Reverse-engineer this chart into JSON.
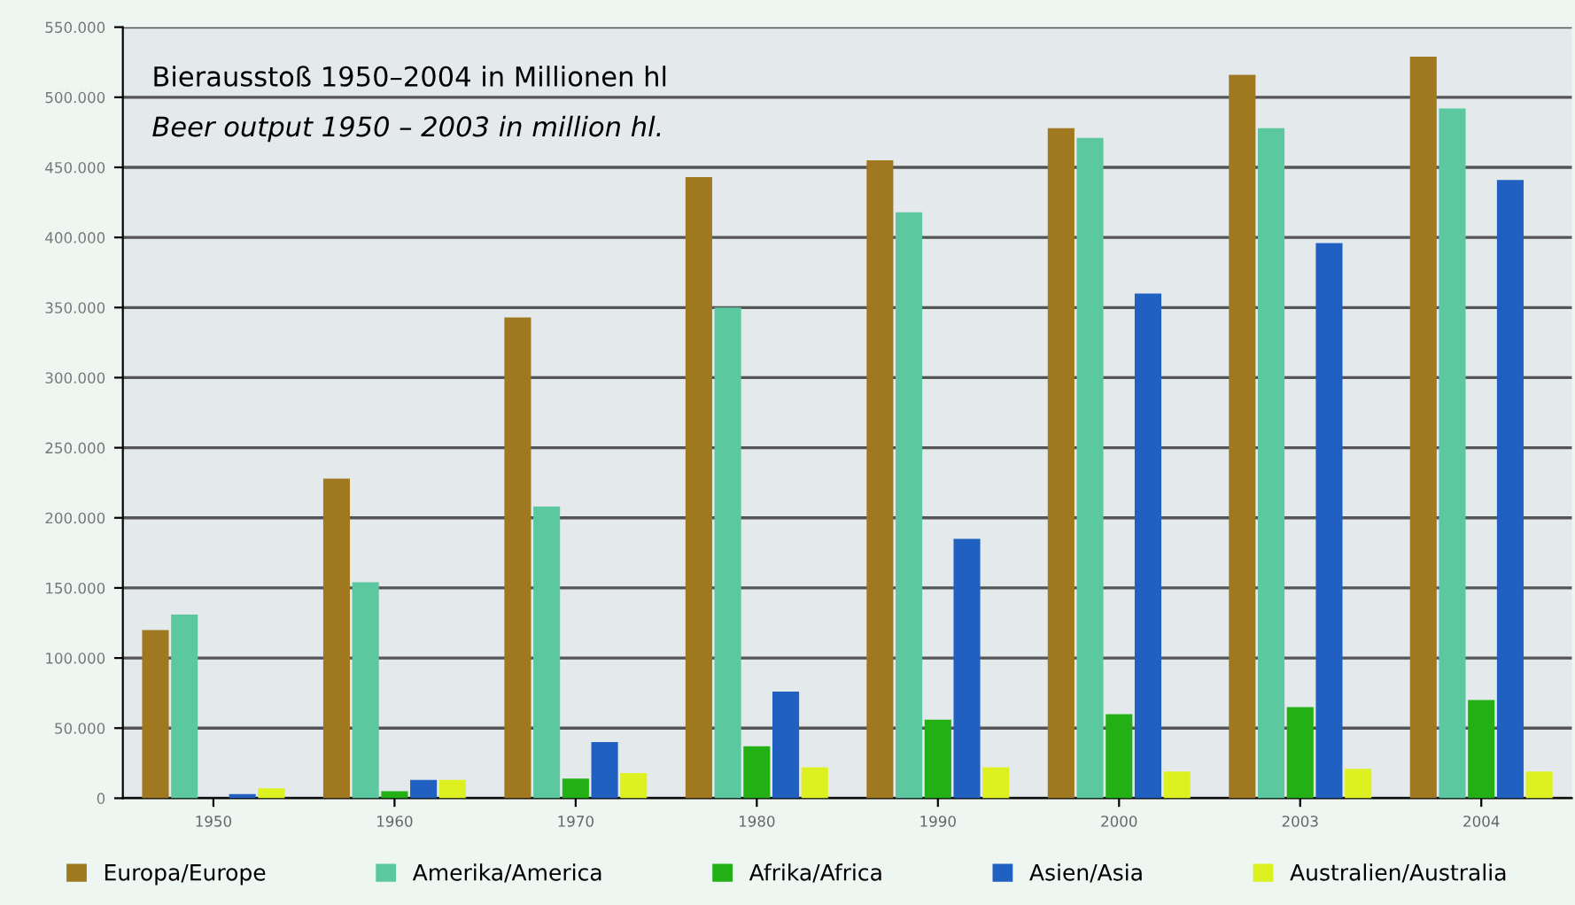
{
  "chart_data": {
    "type": "bar",
    "title": "Bierausstoß 1950–2004 in Millionen hl",
    "subtitle": "Beer output 1950 – 2003 in million hl.",
    "categories": [
      "1950",
      "1960",
      "1970",
      "1980",
      "1990",
      "2000",
      "2003",
      "2004"
    ],
    "series": [
      {
        "name": "Europa/Europe",
        "color": "#a07820",
        "values": [
          120000,
          228000,
          343000,
          443000,
          455000,
          478000,
          516000,
          529000
        ]
      },
      {
        "name": "Amerika/America",
        "color": "#5cc8a0",
        "values": [
          131000,
          154000,
          208000,
          350000,
          418000,
          471000,
          478000,
          492000
        ]
      },
      {
        "name": "Afrika/Africa",
        "color": "#22b014",
        "values": [
          null,
          5000,
          14000,
          37000,
          56000,
          60000,
          65000,
          70000
        ]
      },
      {
        "name": "Asien/Asia",
        "color": "#2060c0",
        "values": [
          3000,
          13000,
          40000,
          76000,
          185000,
          360000,
          396000,
          441000
        ]
      },
      {
        "name": "Australien/Australia",
        "color": "#ddf020",
        "values": [
          7000,
          13000,
          18000,
          22000,
          22000,
          19000,
          21000,
          19000
        ]
      }
    ],
    "ylim": [
      0,
      550000
    ],
    "yticks": [
      0,
      {
        "value": 50000,
        "label": "50.000"
      },
      {
        "value": 100000,
        "label": "100.000"
      },
      {
        "value": 150000,
        "label": "150.000"
      },
      {
        "value": 200000,
        "label": "200.000"
      },
      {
        "value": 250000,
        "label": "250.000"
      },
      {
        "value": 300000,
        "label": "300.000"
      },
      {
        "value": 350000,
        "label": "350.000"
      },
      {
        "value": 400000,
        "label": "400.000"
      },
      {
        "value": 450000,
        "label": "450.000"
      },
      {
        "value": 500000,
        "label": "500.000"
      },
      {
        "value": 550000,
        "label": "550.000"
      }
    ],
    "grid": "y",
    "legend": "bottom"
  }
}
